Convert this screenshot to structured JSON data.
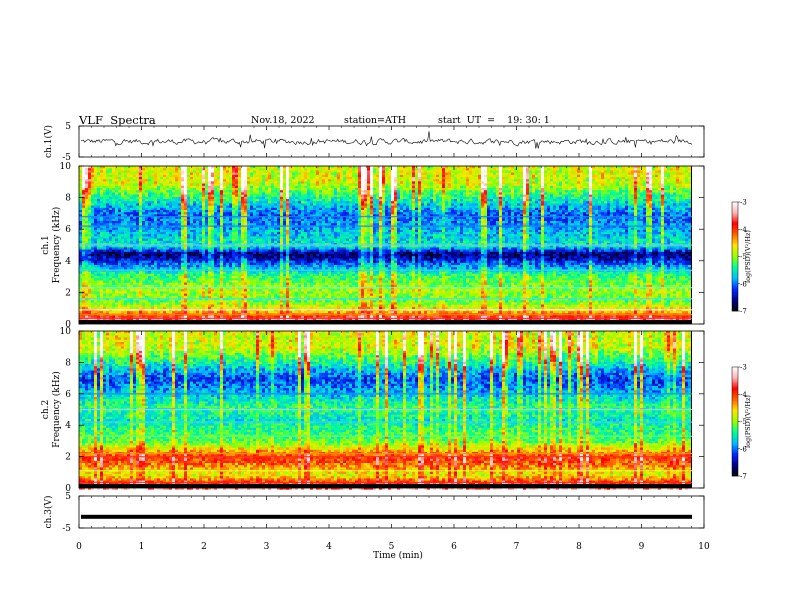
{
  "header": {
    "title": "VLF  Spectra",
    "date": "Nov.18, 2022",
    "station": "station=ATH",
    "start_ut": "start  UT  =    19: 30: 1"
  },
  "chart_data": [
    {
      "type": "line",
      "panel": "ch1-waveform",
      "ylabel": "ch.1(V)",
      "ylim": [
        -5,
        5
      ],
      "yticks": [
        "5",
        "-5"
      ],
      "x_range_min": [
        0,
        9.8
      ],
      "description_values": "noisy waveform centered near 0 V, amplitude about ±1 V with spikes to about ±3 V"
    },
    {
      "type": "heatmap",
      "panel": "ch1-spectrogram",
      "ylabel": "ch.1\nFrequency  (kHz)",
      "ylim": [
        0,
        10
      ],
      "yticks": [
        "0",
        "2",
        "4",
        "6",
        "8",
        "10"
      ],
      "colorbar": {
        "label": "log(PSD)(V²/Hz)",
        "range": [
          -7,
          -3
        ],
        "ticks": [
          "-3",
          "-4",
          "-5",
          "-6",
          "-7"
        ]
      },
      "bands_khz": [
        {
          "f": 0.1,
          "level": -3.0
        },
        {
          "f": 0.8,
          "level": -4.5
        },
        {
          "f": 1.5,
          "level": -5.2
        },
        {
          "f": 2.2,
          "level": -5.0
        },
        {
          "f": 3.2,
          "level": -5.4
        },
        {
          "f": 4.5,
          "level": -6.8
        },
        {
          "f": 5.0,
          "level": -5.6
        },
        {
          "f": 7.0,
          "level": -6.2
        },
        {
          "f": 9.0,
          "level": -5.0
        }
      ]
    },
    {
      "type": "heatmap",
      "panel": "ch2-spectrogram",
      "ylabel": "ch.2\nFrequency  (kHz)",
      "ylim": [
        0,
        10
      ],
      "yticks": [
        "0",
        "2",
        "4",
        "6",
        "8",
        "10"
      ],
      "colorbar": {
        "label": "log(PSD)(V²/Hz)",
        "range": [
          -7,
          -3
        ],
        "ticks": [
          "-3",
          "-4",
          "-5",
          "-6",
          "-7"
        ]
      },
      "bands_khz": [
        {
          "f": 0.1,
          "level": -3.5
        },
        {
          "f": 0.9,
          "level": -4.8
        },
        {
          "f": 2.0,
          "level": -4.0
        },
        {
          "f": 3.0,
          "level": -5.2
        },
        {
          "f": 4.4,
          "level": -5.6
        },
        {
          "f": 5.2,
          "level": -5.4
        },
        {
          "f": 7.0,
          "level": -6.3
        },
        {
          "f": 9.0,
          "level": -5.0
        }
      ]
    },
    {
      "type": "line",
      "panel": "ch3-waveform",
      "ylabel": "ch.3(V)",
      "ylim": [
        -5,
        5
      ],
      "yticks": [
        "5",
        "-5"
      ],
      "constant_value": -1.5
    }
  ],
  "x_axis": {
    "xlabel": "Time  (min)",
    "xlim": [
      0,
      10
    ],
    "ticks": [
      "0",
      "1",
      "2",
      "3",
      "4",
      "5",
      "6",
      "7",
      "8",
      "9",
      "10"
    ]
  }
}
